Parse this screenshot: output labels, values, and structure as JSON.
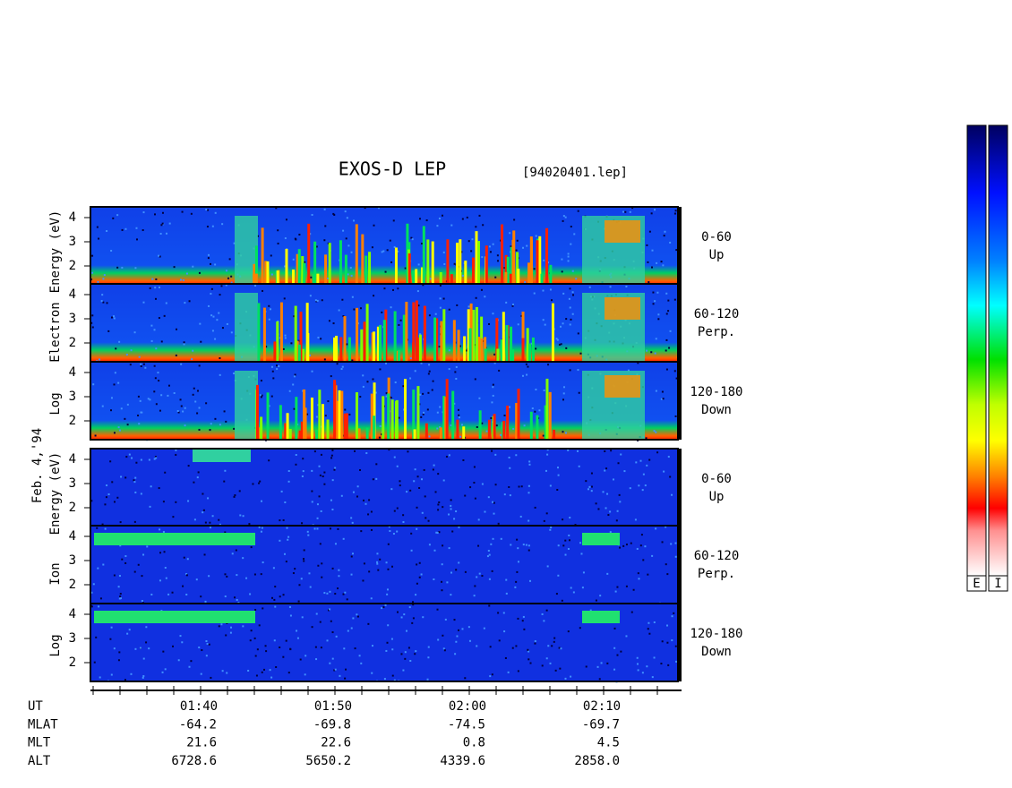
{
  "title": "EXOS-D LEP",
  "file": "[94020401.lep]",
  "date": "Feb. 4,'94",
  "groups": [
    {
      "ylabel": [
        "Log",
        "Electron",
        "Energy (eV)"
      ],
      "panels": [
        {
          "range": "0-60",
          "direction": "Up"
        },
        {
          "range": "60-120",
          "direction": "Perp."
        },
        {
          "range": "120-180",
          "direction": "Down"
        }
      ]
    },
    {
      "ylabel": [
        "Log",
        "Ion",
        "Energy (eV)"
      ],
      "panels": [
        {
          "range": "0-60",
          "direction": "Up"
        },
        {
          "range": "60-120",
          "direction": "Perp."
        },
        {
          "range": "120-180",
          "direction": "Down"
        }
      ]
    }
  ],
  "yticks": [
    "2",
    "3",
    "4"
  ],
  "time_ticks": [
    "01:40",
    "01:50",
    "02:00",
    "02:10"
  ],
  "ephemeris": [
    {
      "label": "UT",
      "values": []
    },
    {
      "label": "MLAT",
      "values": [
        "-64.2",
        "-69.8",
        "-74.5",
        "-69.7"
      ]
    },
    {
      "label": "MLT",
      "values": [
        "21.6",
        "22.6",
        "0.8",
        "4.5"
      ]
    },
    {
      "label": "ALT",
      "values": [
        "6728.6",
        "5650.2",
        "4339.6",
        "2858.0"
      ]
    }
  ],
  "colorbars": [
    "E",
    "I"
  ]
}
